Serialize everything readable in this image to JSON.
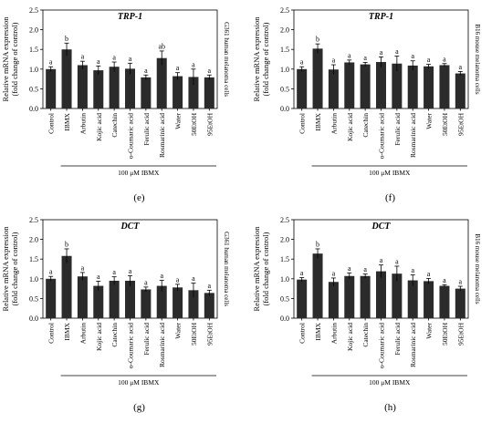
{
  "chart_data": [
    {
      "type": "bar",
      "title": "TRP-1",
      "cell_label": "G361 human melanoma cells",
      "ylabel": [
        "Relative mRNA expression",
        "(fold change of control)"
      ],
      "ylim": [
        0,
        2.5
      ],
      "yticks": [
        "0.0",
        "0.5",
        "1.0",
        "1.5",
        "2.0",
        "2.5"
      ],
      "categories": [
        "Control",
        "IBMX",
        "Arbutin",
        "Kojic acid",
        "Catechin",
        "o-Coumaric acid",
        "Ferulic acid",
        "Rosmarinic acid",
        "Water",
        "50EtOH",
        "95EtOH"
      ],
      "values": [
        1.0,
        1.5,
        1.1,
        0.97,
        1.06,
        1.01,
        0.79,
        1.28,
        0.82,
        0.8,
        0.79
      ],
      "errors": [
        0.06,
        0.16,
        0.1,
        0.11,
        0.12,
        0.14,
        0.06,
        0.18,
        0.09,
        0.2,
        0.06
      ],
      "sig": [
        "a",
        "b",
        "a",
        "a",
        "a",
        "a",
        "a",
        "ab",
        "a",
        "a",
        "a"
      ],
      "bracket_label": "100 μM IBMX",
      "panel_label": "(e)"
    },
    {
      "type": "bar",
      "title": "TRP-1",
      "cell_label": "B16 mouse melanoma cells",
      "ylabel": [
        "Relative mRNA expression",
        "(fold change of control)"
      ],
      "ylim": [
        0,
        2.5
      ],
      "yticks": [
        "0.0",
        "0.5",
        "1.0",
        "1.5",
        "2.0",
        "2.5"
      ],
      "categories": [
        "Control",
        "IBMX",
        "Arbutin",
        "Kojic acid",
        "Catechin",
        "o-Coumaric acid",
        "Ferulic acid",
        "Rosmarinic acid",
        "Water",
        "50EtOH",
        "95EtOH"
      ],
      "values": [
        1.0,
        1.52,
        0.99,
        1.17,
        1.12,
        1.18,
        1.14,
        1.09,
        1.07,
        1.1,
        0.89
      ],
      "errors": [
        0.06,
        0.12,
        0.12,
        0.06,
        0.05,
        0.13,
        0.19,
        0.12,
        0.05,
        0.04,
        0.05
      ],
      "sig": [
        "a",
        "b",
        "a",
        "a",
        "a",
        "a",
        "a",
        "a",
        "a",
        "a",
        "a"
      ],
      "bracket_label": "100 μM IBMX",
      "panel_label": "(f)"
    },
    {
      "type": "bar",
      "title": "DCT",
      "cell_label": "G361 human melanoma cells",
      "ylabel": [
        "Relative mRNA expression",
        "(fold change of control)"
      ],
      "ylim": [
        0,
        2.5
      ],
      "yticks": [
        "0.0",
        "0.5",
        "1.0",
        "1.5",
        "2.0",
        "2.5"
      ],
      "categories": [
        "Control",
        "IBMX",
        "Arbutin",
        "Kojic acid",
        "Catechin",
        "o-Coumaric acid",
        "Ferulic acid",
        "Rosmarinic acid",
        "Water",
        "50EtOH",
        "95EtOH"
      ],
      "values": [
        1.0,
        1.58,
        1.06,
        0.82,
        0.95,
        0.95,
        0.73,
        0.82,
        0.78,
        0.71,
        0.64
      ],
      "errors": [
        0.06,
        0.18,
        0.1,
        0.12,
        0.1,
        0.13,
        0.06,
        0.14,
        0.08,
        0.18,
        0.07
      ],
      "sig": [
        "a",
        "b",
        "a",
        "a",
        "a",
        "a",
        "a",
        "a",
        "a",
        "a",
        "a"
      ],
      "bracket_label": "100 μM IBMX",
      "panel_label": "(g)"
    },
    {
      "type": "bar",
      "title": "DCT",
      "cell_label": "B16 mouse melanoma cells",
      "ylabel": [
        "Relative mRNA expression",
        "(fold change of control)"
      ],
      "ylim": [
        0,
        2.5
      ],
      "yticks": [
        "0.0",
        "0.5",
        "1.0",
        "1.5",
        "2.0",
        "2.5"
      ],
      "categories": [
        "Control",
        "IBMX",
        "Arbutin",
        "Kojic acid",
        "Catechin",
        "o-Coumaric acid",
        "Ferulic acid",
        "Rosmarinic acid",
        "Water",
        "50EtOH",
        "95EtOH"
      ],
      "values": [
        0.98,
        1.64,
        0.92,
        1.07,
        1.07,
        1.19,
        1.13,
        0.96,
        0.94,
        0.82,
        0.75
      ],
      "errors": [
        0.05,
        0.12,
        0.1,
        0.08,
        0.05,
        0.16,
        0.19,
        0.14,
        0.07,
        0.03,
        0.06
      ],
      "sig": [
        "a",
        "b",
        "a",
        "a",
        "a",
        "a",
        "a",
        "a",
        "a",
        "a",
        "a"
      ],
      "bracket_label": "100 μM IBMX",
      "panel_label": "(h)"
    }
  ]
}
